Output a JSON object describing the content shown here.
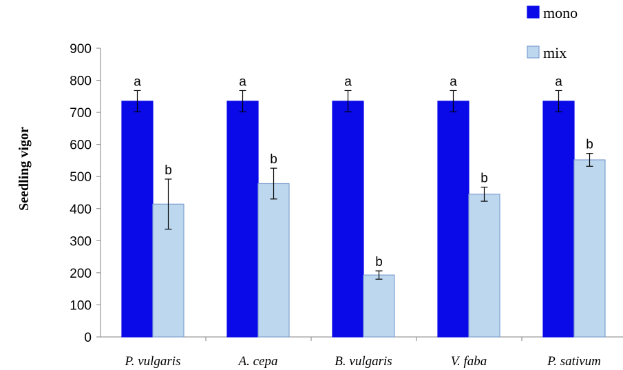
{
  "chart_data": {
    "type": "bar",
    "ylabel": "Seedling vigor",
    "xlabel": "",
    "title": "",
    "ylim": [
      0,
      900
    ],
    "yticks": [
      0,
      100,
      200,
      300,
      400,
      500,
      600,
      700,
      800,
      900
    ],
    "categories": [
      "P. vulgaris",
      "A. cepa",
      "B. vulgaris",
      "V. faba",
      "P. sativum"
    ],
    "series": [
      {
        "name": "mono",
        "color": "#0a0ae8",
        "values": [
          735,
          735,
          735,
          735,
          735
        ],
        "errors": [
          33,
          33,
          33,
          33,
          33
        ],
        "letters": [
          "a",
          "a",
          "a",
          "a",
          "a"
        ]
      },
      {
        "name": "mix",
        "color": "#bdd7ee",
        "edge_color": "#7f9fd0",
        "values": [
          414,
          478,
          193,
          445,
          552
        ],
        "errors": [
          78,
          48,
          13,
          22,
          20
        ],
        "letters": [
          "b",
          "b",
          "b",
          "b",
          "b"
        ]
      }
    ],
    "legend_position": "top-right",
    "grid": false
  }
}
